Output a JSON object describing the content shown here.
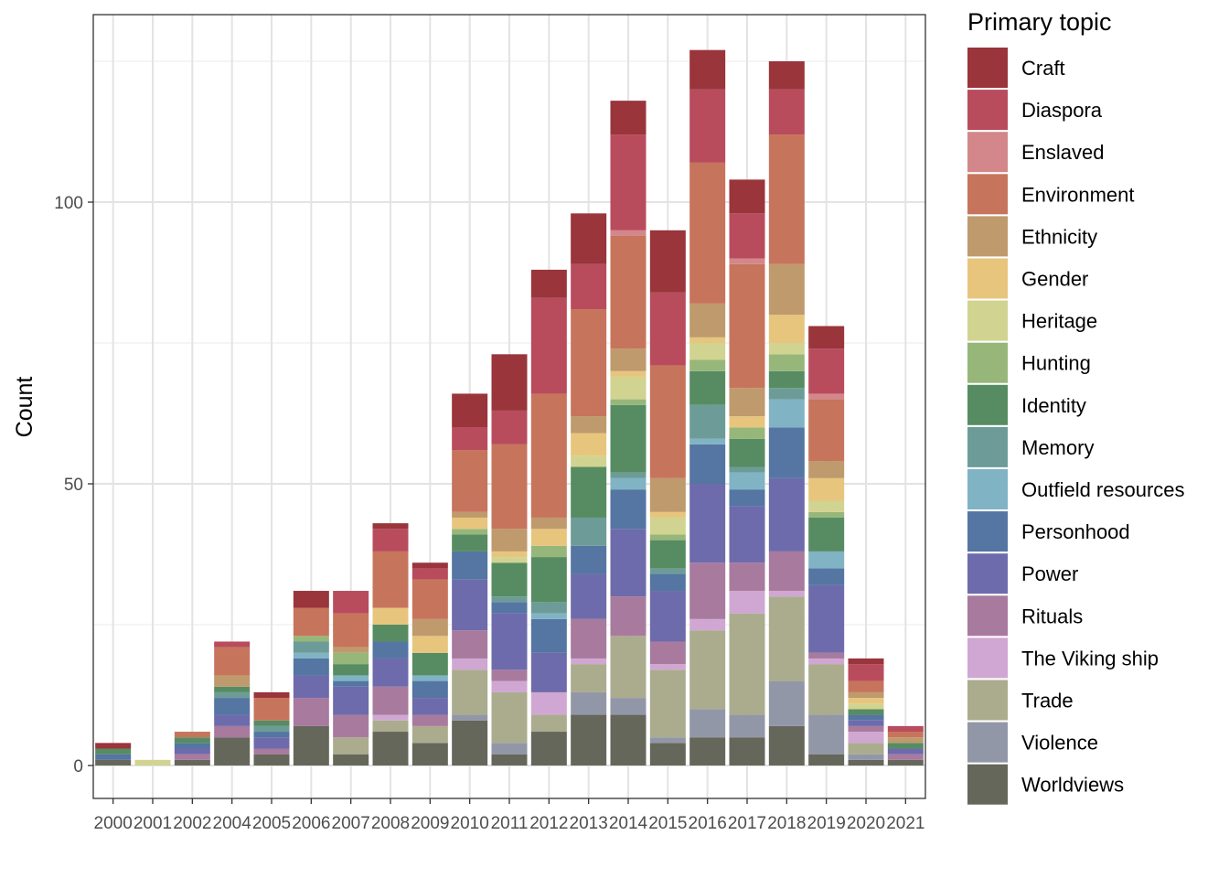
{
  "chart_data": {
    "type": "bar",
    "stacked": true,
    "title": "",
    "xlabel": "",
    "ylabel": "Count",
    "ylim": [
      -6,
      133
    ],
    "yticks": [
      0,
      50,
      100
    ],
    "grid": true,
    "legend_title": "Primary topic",
    "legend_position": "right",
    "categories": [
      "2000",
      "2001",
      "2002",
      "2004",
      "2005",
      "2006",
      "2007",
      "2008",
      "2009",
      "2010",
      "2011",
      "2012",
      "2013",
      "2014",
      "2015",
      "2016",
      "2017",
      "2018",
      "2019",
      "2020",
      "2021"
    ],
    "series": [
      {
        "name": "Worldviews",
        "color": "#65675A",
        "values": [
          1,
          0,
          1,
          5,
          2,
          7,
          2,
          6,
          4,
          8,
          2,
          6,
          9,
          9,
          4,
          5,
          5,
          7,
          2,
          1,
          1
        ]
      },
      {
        "name": "Violence",
        "color": "#9297A8",
        "values": [
          0,
          0,
          0,
          0,
          0,
          0,
          0,
          0,
          0,
          1,
          2,
          0,
          4,
          3,
          1,
          5,
          4,
          8,
          7,
          1,
          0
        ]
      },
      {
        "name": "Trade",
        "color": "#ABAC8E",
        "values": [
          0,
          0,
          0,
          0,
          0,
          0,
          3,
          2,
          3,
          8,
          9,
          3,
          5,
          11,
          12,
          14,
          18,
          15,
          9,
          2,
          0
        ]
      },
      {
        "name": "The Viking ship",
        "color": "#D0A7D2",
        "values": [
          0,
          0,
          0,
          0,
          0,
          0,
          0,
          1,
          0,
          2,
          2,
          4,
          1,
          0,
          1,
          2,
          4,
          1,
          1,
          2,
          0
        ]
      },
      {
        "name": "Rituals",
        "color": "#A87A9E",
        "values": [
          0,
          0,
          1,
          2,
          1,
          5,
          4,
          5,
          2,
          5,
          2,
          0,
          7,
          7,
          4,
          10,
          5,
          7,
          1,
          1,
          1
        ]
      },
      {
        "name": "Power",
        "color": "#6E6BAC",
        "values": [
          0,
          0,
          1,
          2,
          2,
          4,
          5,
          5,
          3,
          9,
          10,
          7,
          8,
          12,
          9,
          14,
          10,
          13,
          12,
          1,
          1
        ]
      },
      {
        "name": "Personhood",
        "color": "#5575A2",
        "values": [
          1,
          0,
          1,
          3,
          1,
          3,
          1,
          3,
          3,
          5,
          2,
          6,
          5,
          7,
          3,
          7,
          3,
          9,
          3,
          1,
          0
        ]
      },
      {
        "name": "Outfield resources",
        "color": "#80B3C4",
        "values": [
          0,
          0,
          0,
          0,
          0,
          1,
          1,
          0,
          1,
          0,
          0,
          1,
          0,
          2,
          0,
          1,
          3,
          5,
          3,
          0,
          0
        ]
      },
      {
        "name": "Memory",
        "color": "#6D9C98",
        "values": [
          0,
          0,
          0,
          1,
          1,
          2,
          0,
          0,
          0,
          0,
          1,
          2,
          5,
          1,
          1,
          6,
          1,
          2,
          0,
          0,
          0
        ]
      },
      {
        "name": "Identity",
        "color": "#578C62",
        "values": [
          1,
          0,
          1,
          1,
          1,
          0,
          2,
          3,
          4,
          3,
          6,
          8,
          9,
          12,
          5,
          6,
          5,
          3,
          6,
          1,
          1
        ]
      },
      {
        "name": "Hunting",
        "color": "#97B77A",
        "values": [
          0,
          0,
          0,
          0,
          0,
          1,
          2,
          0,
          0,
          1,
          0,
          2,
          0,
          1,
          1,
          2,
          2,
          3,
          1,
          0,
          0
        ]
      },
      {
        "name": "Heritage",
        "color": "#D1D391",
        "values": [
          0,
          1,
          0,
          0,
          0,
          0,
          0,
          0,
          0,
          0,
          1,
          0,
          2,
          4,
          3,
          3,
          0,
          2,
          2,
          1,
          0
        ]
      },
      {
        "name": "Gender",
        "color": "#E8C57D",
        "values": [
          0,
          0,
          0,
          0,
          0,
          0,
          0,
          3,
          3,
          2,
          1,
          3,
          4,
          1,
          1,
          1,
          2,
          5,
          4,
          1,
          0
        ]
      },
      {
        "name": "Ethnicity",
        "color": "#BE9A6C",
        "values": [
          0,
          0,
          0,
          2,
          0,
          0,
          1,
          0,
          3,
          1,
          4,
          2,
          3,
          4,
          6,
          6,
          5,
          9,
          3,
          1,
          1
        ]
      },
      {
        "name": "Environment",
        "color": "#C7745C",
        "values": [
          0,
          0,
          1,
          5,
          4,
          5,
          6,
          10,
          7,
          11,
          15,
          22,
          19,
          20,
          20,
          25,
          22,
          23,
          11,
          2,
          1
        ]
      },
      {
        "name": "Enslaved",
        "color": "#D3878A",
        "values": [
          0,
          0,
          0,
          0,
          0,
          0,
          0,
          0,
          0,
          0,
          0,
          0,
          0,
          1,
          0,
          0,
          1,
          0,
          1,
          0,
          0
        ]
      },
      {
        "name": "Diaspora",
        "color": "#B84C5C",
        "values": [
          0,
          0,
          0,
          1,
          0,
          0,
          4,
          4,
          2,
          4,
          6,
          17,
          8,
          17,
          13,
          13,
          8,
          8,
          8,
          3,
          1
        ]
      },
      {
        "name": "Craft",
        "color": "#99353B",
        "values": [
          1,
          0,
          0,
          0,
          1,
          3,
          0,
          1,
          1,
          6,
          10,
          5,
          9,
          6,
          11,
          7,
          6,
          5,
          4,
          1,
          0
        ]
      }
    ],
    "legend_order": [
      "Craft",
      "Diaspora",
      "Enslaved",
      "Environment",
      "Ethnicity",
      "Gender",
      "Heritage",
      "Hunting",
      "Identity",
      "Memory",
      "Outfield resources",
      "Personhood",
      "Power",
      "Rituals",
      "The Viking ship",
      "Trade",
      "Violence",
      "Worldviews"
    ]
  }
}
